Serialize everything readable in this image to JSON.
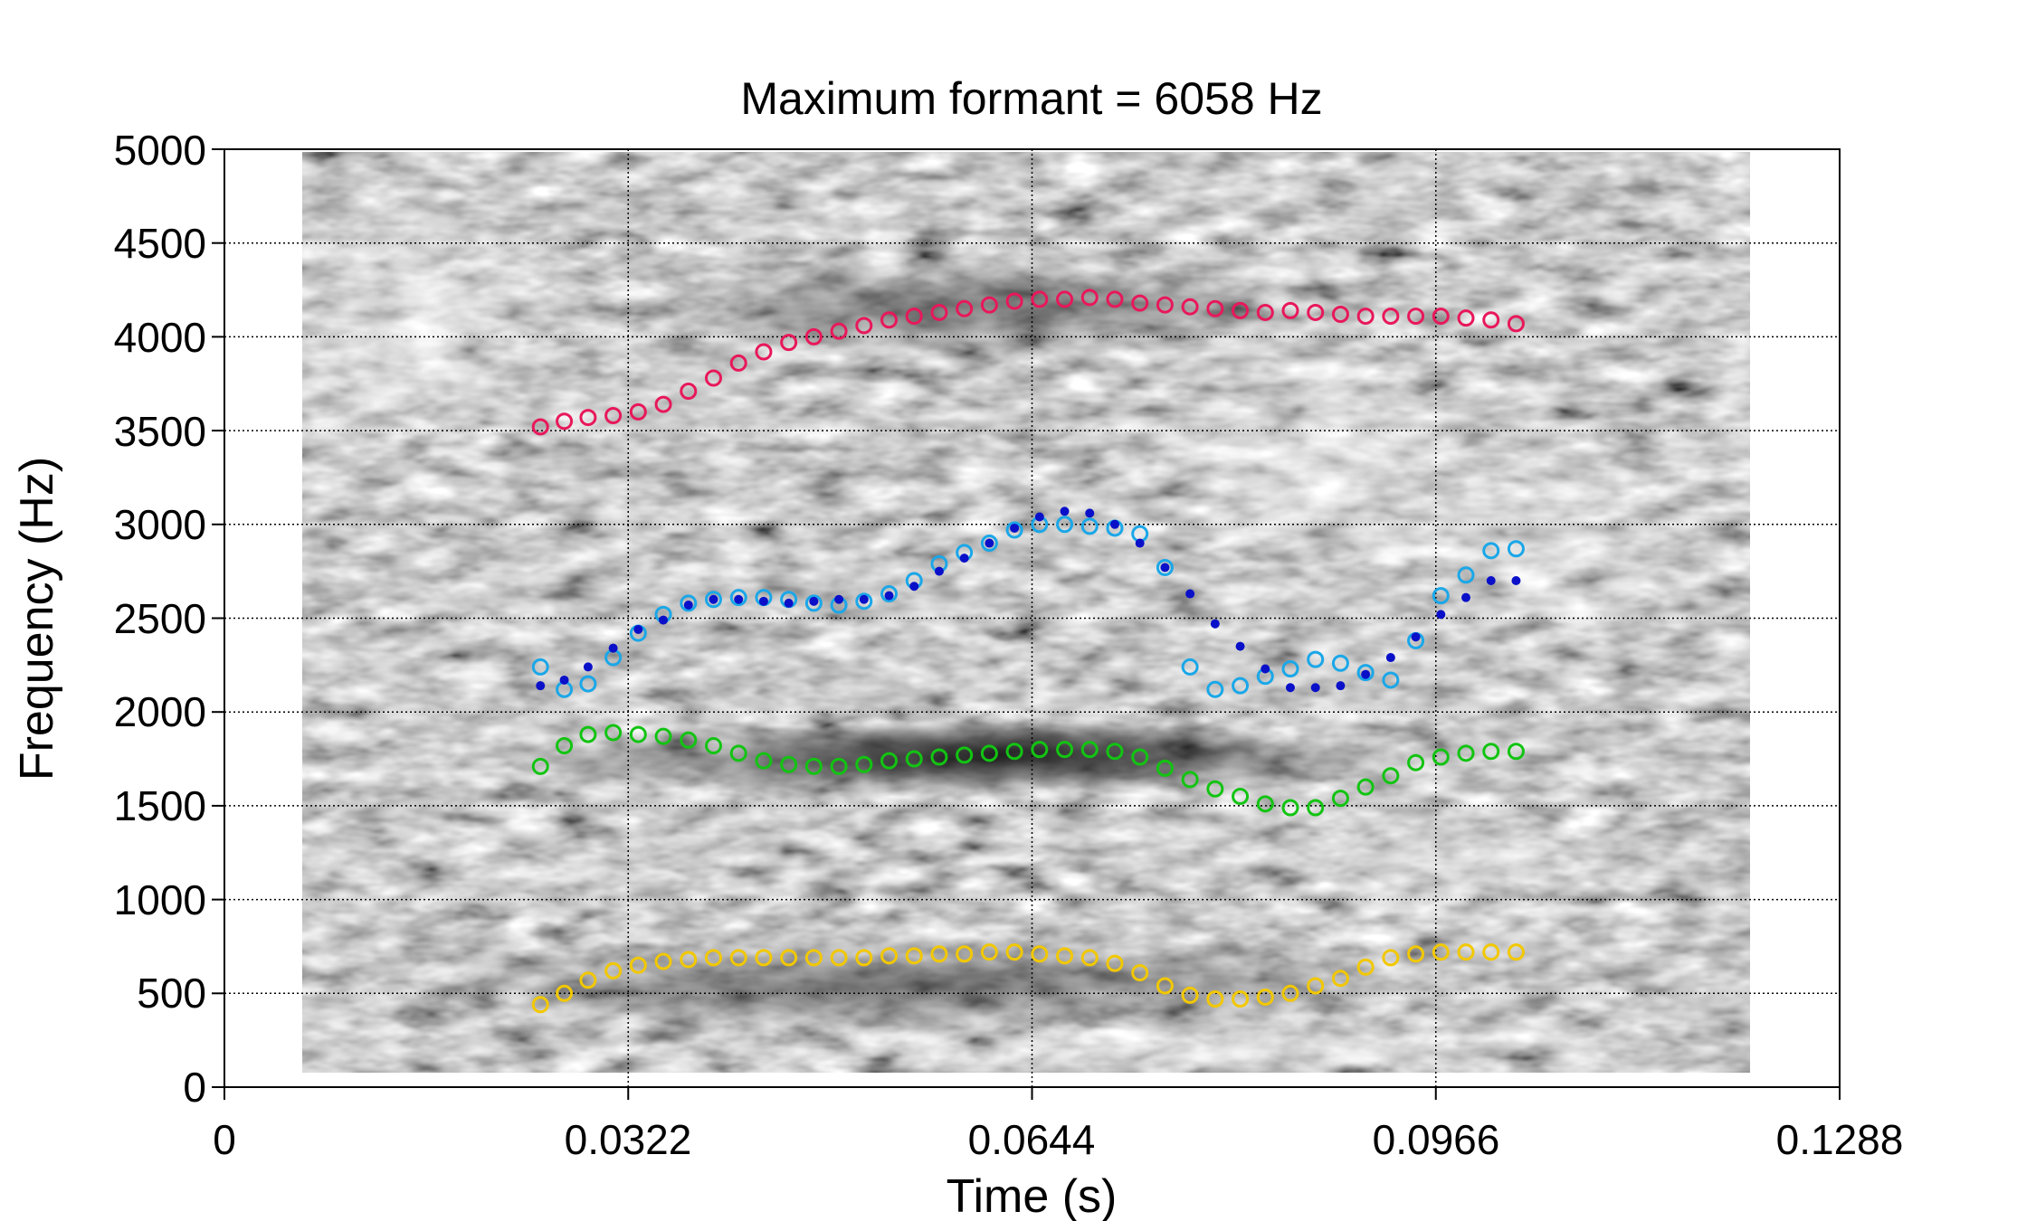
{
  "chart_data": {
    "type": "scatter",
    "title": "Maximum formant = 6058 Hz",
    "xlabel": "Time (s)",
    "ylabel": "Frequency (Hz)",
    "xlim": [
      0,
      0.1288
    ],
    "ylim": [
      0,
      5000
    ],
    "xticks": [
      "0",
      "0.0322",
      "0.0644",
      "0.0966",
      "0.1288"
    ],
    "yticks": [
      "0",
      "500",
      "1000",
      "1500",
      "2000",
      "2500",
      "3000",
      "3500",
      "4000",
      "4500",
      "5000"
    ],
    "grid": true,
    "background": "grayscale spectrogram",
    "colors": {
      "F1": "#f2c800",
      "F2": "#12c412",
      "F3": "#1aa7e8",
      "F3_dot": "#0a10c8",
      "F4": "#e8185a"
    },
    "series": [
      {
        "key": "F1",
        "marker": "open-circle",
        "x": [
          0.0252,
          0.0271,
          0.029,
          0.031,
          0.033,
          0.035,
          0.037,
          0.039,
          0.041,
          0.043,
          0.045,
          0.047,
          0.049,
          0.051,
          0.053,
          0.055,
          0.057,
          0.059,
          0.061,
          0.063,
          0.065,
          0.067,
          0.069,
          0.071,
          0.073,
          0.075,
          0.077,
          0.079,
          0.081,
          0.083,
          0.085,
          0.087,
          0.089,
          0.091,
          0.093,
          0.095,
          0.097,
          0.099,
          0.101,
          0.103
        ],
        "y": [
          440,
          500,
          570,
          620,
          650,
          670,
          680,
          690,
          690,
          690,
          690,
          690,
          690,
          690,
          700,
          700,
          710,
          710,
          720,
          720,
          710,
          700,
          690,
          660,
          610,
          540,
          490,
          470,
          470,
          480,
          500,
          540,
          580,
          640,
          690,
          710,
          720,
          720,
          720,
          720
        ]
      },
      {
        "key": "F2",
        "marker": "open-circle",
        "x": [
          0.0252,
          0.0271,
          0.029,
          0.031,
          0.033,
          0.035,
          0.037,
          0.039,
          0.041,
          0.043,
          0.045,
          0.047,
          0.049,
          0.051,
          0.053,
          0.055,
          0.057,
          0.059,
          0.061,
          0.063,
          0.065,
          0.067,
          0.069,
          0.071,
          0.073,
          0.075,
          0.077,
          0.079,
          0.081,
          0.083,
          0.085,
          0.087,
          0.089,
          0.091,
          0.093,
          0.095,
          0.097,
          0.099,
          0.101,
          0.103
        ],
        "y": [
          1710,
          1820,
          1880,
          1890,
          1880,
          1870,
          1850,
          1820,
          1780,
          1740,
          1720,
          1710,
          1710,
          1720,
          1740,
          1750,
          1760,
          1770,
          1780,
          1790,
          1800,
          1800,
          1800,
          1790,
          1760,
          1700,
          1640,
          1590,
          1550,
          1510,
          1490,
          1490,
          1540,
          1600,
          1660,
          1730,
          1760,
          1780,
          1790,
          1790
        ]
      },
      {
        "key": "F3",
        "marker": "open-circle",
        "x": [
          0.0252,
          0.0271,
          0.029,
          0.031,
          0.033,
          0.035,
          0.037,
          0.039,
          0.041,
          0.043,
          0.045,
          0.047,
          0.049,
          0.051,
          0.053,
          0.055,
          0.057,
          0.059,
          0.061,
          0.063,
          0.065,
          0.067,
          0.069,
          0.071,
          0.073,
          0.075,
          0.077,
          0.079,
          0.081,
          0.083,
          0.085,
          0.087,
          0.089,
          0.091,
          0.093,
          0.095,
          0.097,
          0.099,
          0.101,
          0.103
        ],
        "y": [
          2240,
          2120,
          2150,
          2290,
          2420,
          2520,
          2580,
          2600,
          2610,
          2610,
          2600,
          2580,
          2570,
          2590,
          2630,
          2700,
          2790,
          2850,
          2900,
          2970,
          3000,
          3000,
          2990,
          2980,
          2950,
          2770,
          2240,
          2120,
          2140,
          2190,
          2230,
          2280,
          2260,
          2210,
          2170,
          2380,
          2620,
          2730,
          2860,
          2870
        ]
      },
      {
        "key": "F3_dot",
        "marker": "dot",
        "x": [
          0.0252,
          0.0271,
          0.029,
          0.031,
          0.033,
          0.035,
          0.037,
          0.039,
          0.041,
          0.043,
          0.045,
          0.047,
          0.049,
          0.051,
          0.053,
          0.055,
          0.057,
          0.059,
          0.061,
          0.063,
          0.065,
          0.067,
          0.069,
          0.071,
          0.073,
          0.075,
          0.077,
          0.079,
          0.081,
          0.083,
          0.085,
          0.087,
          0.089,
          0.091,
          0.093,
          0.095,
          0.097,
          0.099,
          0.101,
          0.103
        ],
        "y": [
          2140,
          2170,
          2240,
          2340,
          2440,
          2490,
          2570,
          2600,
          2600,
          2590,
          2580,
          2590,
          2600,
          2600,
          2620,
          2670,
          2750,
          2820,
          2900,
          2980,
          3040,
          3070,
          3060,
          3000,
          2900,
          2770,
          2630,
          2470,
          2350,
          2230,
          2130,
          2130,
          2140,
          2200,
          2290,
          2400,
          2520,
          2610,
          2700,
          2700
        ]
      },
      {
        "key": "F4",
        "marker": "open-circle",
        "x": [
          0.0252,
          0.0271,
          0.029,
          0.031,
          0.033,
          0.035,
          0.037,
          0.039,
          0.041,
          0.043,
          0.045,
          0.047,
          0.049,
          0.051,
          0.053,
          0.055,
          0.057,
          0.059,
          0.061,
          0.063,
          0.065,
          0.067,
          0.069,
          0.071,
          0.073,
          0.075,
          0.077,
          0.079,
          0.081,
          0.083,
          0.085,
          0.087,
          0.089,
          0.091,
          0.093,
          0.095,
          0.097,
          0.099,
          0.101,
          0.103
        ],
        "y": [
          3520,
          3550,
          3570,
          3580,
          3600,
          3640,
          3710,
          3780,
          3860,
          3920,
          3970,
          4000,
          4030,
          4060,
          4090,
          4110,
          4130,
          4150,
          4170,
          4190,
          4200,
          4200,
          4210,
          4200,
          4180,
          4170,
          4160,
          4150,
          4140,
          4130,
          4140,
          4130,
          4120,
          4110,
          4110,
          4110,
          4110,
          4100,
          4090,
          4070
        ]
      }
    ]
  }
}
